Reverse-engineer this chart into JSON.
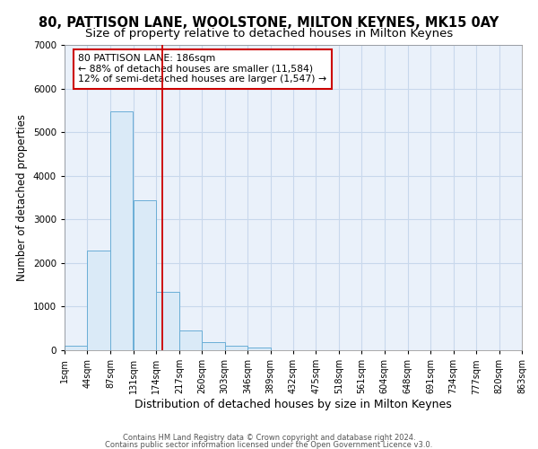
{
  "title": "80, PATTISON LANE, WOOLSTONE, MILTON KEYNES, MK15 0AY",
  "subtitle": "Size of property relative to detached houses in Milton Keynes",
  "xlabel": "Distribution of detached houses by size in Milton Keynes",
  "ylabel": "Number of detached properties",
  "bar_color": "#daeaf7",
  "bar_edge_color": "#6aaed6",
  "grid_color": "#c8d8ec",
  "background_color": "#eaf1fa",
  "bins": [
    "1sqm",
    "44sqm",
    "87sqm",
    "131sqm",
    "174sqm",
    "217sqm",
    "260sqm",
    "303sqm",
    "346sqm",
    "389sqm",
    "432sqm",
    "475sqm",
    "518sqm",
    "561sqm",
    "604sqm",
    "648sqm",
    "691sqm",
    "734sqm",
    "777sqm",
    "820sqm",
    "863sqm"
  ],
  "values": [
    100,
    2280,
    5480,
    3440,
    1340,
    460,
    185,
    105,
    60,
    0,
    0,
    0,
    0,
    0,
    0,
    0,
    0,
    0,
    0,
    0
  ],
  "bin_width": 43,
  "bin_starts": [
    1,
    44,
    87,
    131,
    174,
    217,
    260,
    303,
    346,
    389,
    432,
    475,
    518,
    561,
    604,
    648,
    691,
    734,
    777,
    820
  ],
  "property_size": 186,
  "red_line_color": "#cc0000",
  "ylim": [
    0,
    7000
  ],
  "annotation_line1": "80 PATTISON LANE: 186sqm",
  "annotation_line2": "← 88% of detached houses are smaller (11,584)",
  "annotation_line3": "12% of semi-detached houses are larger (1,547) →",
  "annotation_box_color": "#cc0000",
  "footer_line1": "Contains HM Land Registry data © Crown copyright and database right 2024.",
  "footer_line2": "Contains public sector information licensed under the Open Government Licence v3.0.",
  "title_fontsize": 10.5,
  "subtitle_fontsize": 9.5,
  "tick_fontsize": 7,
  "ylabel_fontsize": 8.5,
  "xlabel_fontsize": 9,
  "footer_fontsize": 6
}
